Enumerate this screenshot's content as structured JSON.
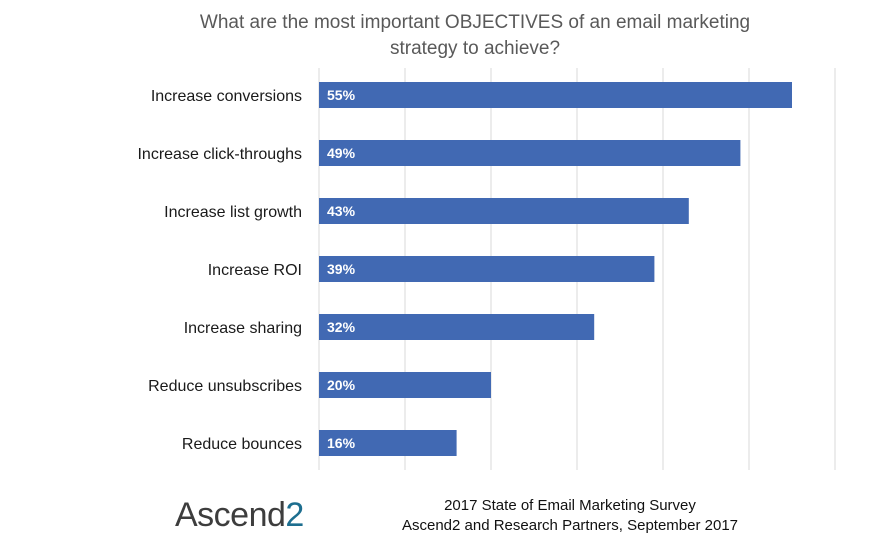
{
  "chart_data": {
    "type": "bar",
    "orientation": "horizontal",
    "title": "What are the most important OBJECTIVES of an email marketing strategy to achieve?",
    "title_lines": [
      "What are the most important OBJECTIVES of an email marketing",
      "strategy to achieve?"
    ],
    "categories": [
      "Increase conversions",
      "Increase click-throughs",
      "Increase list growth",
      "Increase ROI",
      "Increase sharing",
      "Reduce unsubscribes",
      "Reduce bounces"
    ],
    "values": [
      55,
      49,
      43,
      39,
      32,
      20,
      16
    ],
    "value_labels": [
      "55%",
      "49%",
      "43%",
      "39%",
      "32%",
      "20%",
      "16%"
    ],
    "xlim": [
      0,
      60
    ],
    "grid": true,
    "bar_color": "#4169b3"
  },
  "footer": {
    "logo_main": "Ascend",
    "logo_suffix": "2",
    "line1": "2017 State of Email Marketing Survey",
    "line2": "Ascend2 and Research Partners, September 2017"
  }
}
